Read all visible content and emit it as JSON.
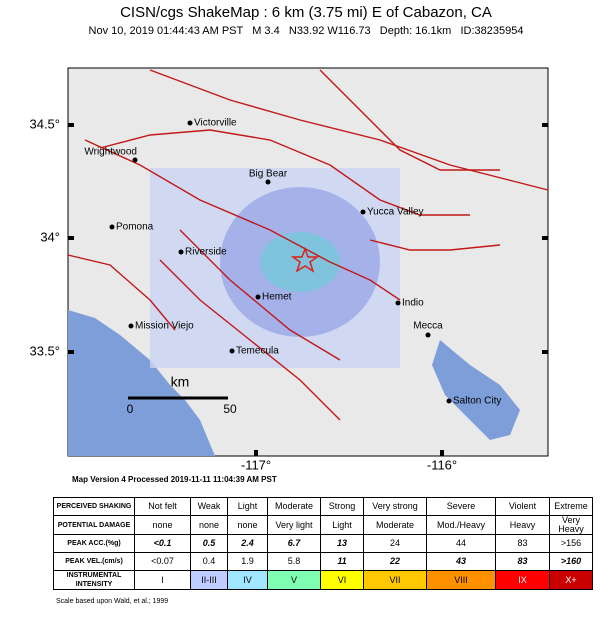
{
  "header": {
    "title": "CISN/cgs ShakeMap : 6 km (3.75 mi) E of Cabazon, CA",
    "subtitle": "Nov 10, 2019 01:44:43 AM PST   M 3.4   N33.92 W116.73   Depth: 16.1km   ID:38235954"
  },
  "map": {
    "lat_labels": [
      "34.5°",
      "34°",
      "33.5°"
    ],
    "lon_labels": [
      "-117°",
      "-116°"
    ],
    "places": [
      "Victorville",
      "Wrightwood",
      "Big Bear",
      "Pomona",
      "Riverside",
      "Yucca Valley",
      "Hemet",
      "Indio",
      "Mission Viejo",
      "Mecca",
      "Temecula",
      "Salton City"
    ],
    "scale": {
      "unit": "km",
      "ticks": [
        "0",
        "50"
      ]
    }
  },
  "version": "Map Version 4 Processed 2019-11-11 11:04:39 AM PST",
  "table": {
    "rows": [
      [
        "PERCEIVED SHAKING",
        "Not felt",
        "Weak",
        "Light",
        "Moderate",
        "Strong",
        "Very strong",
        "Severe",
        "Violent",
        "Extreme"
      ],
      [
        "POTENTIAL DAMAGE",
        "none",
        "none",
        "none",
        "Very light",
        "Light",
        "Moderate",
        "Mod./Heavy",
        "Heavy",
        "Very Heavy"
      ],
      [
        "PEAK ACC.(%g)",
        "<0.1",
        "0.5",
        "2.4",
        "6.7",
        "13",
        "24",
        "44",
        "83",
        ">156"
      ],
      [
        "PEAK VEL.(cm/s)",
        "<0.07",
        "0.4",
        "1.9",
        "5.8",
        "11",
        "22",
        "43",
        "83",
        ">160"
      ],
      [
        "INSTRUMENTAL INTENSITY",
        "I",
        "II-III",
        "IV",
        "V",
        "VI",
        "VII",
        "VIII",
        "IX",
        "X+"
      ]
    ]
  },
  "footer": "Scale based upon Wald, et al.; 1999"
}
